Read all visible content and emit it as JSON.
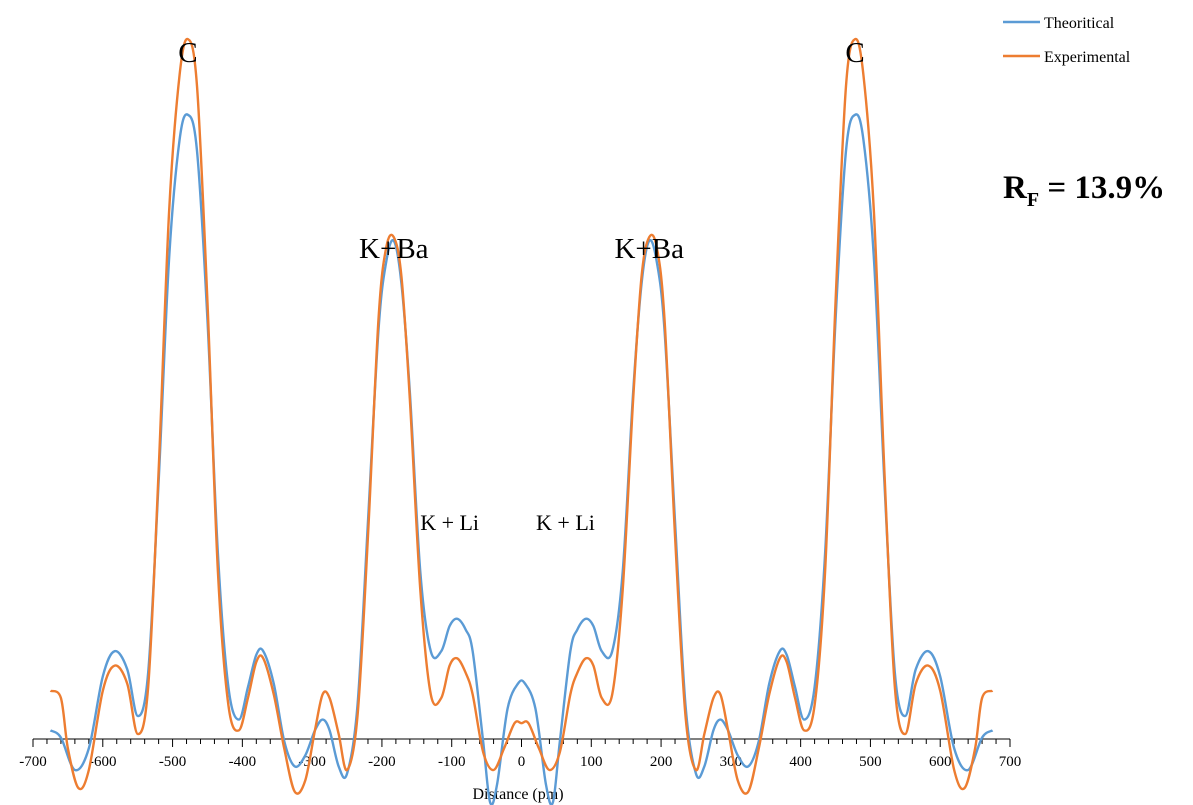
{
  "chart_data": {
    "type": "line",
    "title": "",
    "xlabel": "Distance (pm)",
    "ylabel": "",
    "xlim": [
      -700,
      700
    ],
    "x_ticks": [
      "-700",
      "-600",
      "-500",
      "-400",
      "-300",
      "-200",
      "-100",
      "0",
      "100",
      "200",
      "300",
      "400",
      "500",
      "600",
      "700"
    ],
    "grid": false,
    "legend_position": "top-right",
    "colors": {
      "Theoritical": "#5B9BD5",
      "Experimental": "#ED7D31"
    },
    "series": [
      {
        "name": "Theoritical",
        "x": [
          -675,
          -660,
          -640,
          -620,
          -600,
          -583,
          -565,
          -550,
          -535,
          -520,
          -505,
          -490,
          -478,
          -465,
          -450,
          -435,
          -420,
          -405,
          -392,
          -380,
          -370,
          -355,
          -340,
          -325,
          -310,
          -296,
          -285,
          -275,
          -262,
          -250,
          -235,
          -220,
          -205,
          -194,
          -183,
          -172,
          -160,
          -145,
          -130,
          -115,
          -103,
          -92,
          -80,
          -70,
          -55,
          -45,
          -35,
          -20,
          -5,
          5,
          20,
          35,
          45,
          55,
          70,
          80,
          92,
          103,
          115,
          130,
          145,
          160,
          172,
          183,
          194,
          205,
          220,
          235,
          250,
          262,
          275,
          285,
          296,
          310,
          325,
          340,
          355,
          370,
          380,
          392,
          405,
          420,
          435,
          450,
          465,
          478,
          490,
          505,
          520,
          535,
          550,
          565,
          583,
          600,
          620,
          640,
          660,
          675
        ],
        "y": [
          -34,
          -36,
          -45,
          -39,
          -19,
          -12,
          -17,
          -30,
          -18,
          35,
          97,
          130,
          137,
          127,
          80,
          15,
          -22,
          -31,
          -22,
          -13,
          -12,
          -21,
          -37,
          -44,
          -41,
          -34,
          -31,
          -34,
          -44,
          -46,
          -27,
          24,
          77,
          96,
          102,
          90,
          60,
          10,
          -12,
          -12,
          -5,
          -3,
          -6,
          -12,
          -37,
          -54,
          -49,
          -28,
          -21,
          -21,
          -28,
          -49,
          -54,
          -37,
          -12,
          -6,
          -3,
          -5,
          -12,
          -12,
          10,
          60,
          90,
          102,
          96,
          77,
          24,
          -27,
          -46,
          -44,
          -34,
          -31,
          -34,
          -41,
          -44,
          -37,
          -21,
          -12,
          -13,
          -22,
          -31,
          -22,
          15,
          80,
          127,
          137,
          130,
          97,
          35,
          -18,
          -30,
          -17,
          -12,
          -19,
          -39,
          -45,
          -36,
          -34
        ]
      },
      {
        "name": "Experimental",
        "x": [
          -675,
          -660,
          -650,
          -635,
          -620,
          -600,
          -583,
          -565,
          -550,
          -535,
          -520,
          -505,
          -490,
          -478,
          -465,
          -450,
          -435,
          -420,
          -405,
          -392,
          -380,
          -370,
          -355,
          -340,
          -325,
          -310,
          -296,
          -285,
          -275,
          -262,
          -250,
          -235,
          -220,
          -205,
          -194,
          -183,
          -172,
          -160,
          -145,
          -130,
          -115,
          -103,
          -92,
          -80,
          -70,
          -55,
          -40,
          -25,
          -10,
          0,
          10,
          25,
          40,
          55,
          70,
          80,
          92,
          103,
          115,
          130,
          145,
          160,
          172,
          183,
          194,
          205,
          220,
          235,
          250,
          262,
          275,
          285,
          296,
          310,
          325,
          340,
          355,
          370,
          380,
          392,
          405,
          420,
          435,
          450,
          465,
          478,
          490,
          505,
          520,
          535,
          550,
          565,
          583,
          600,
          620,
          635,
          650,
          660,
          675
        ],
        "y": [
          -23,
          -25,
          -39,
          -50,
          -45,
          -23,
          -16,
          -21,
          -35,
          -22,
          38,
          110,
          148,
          158,
          145,
          85,
          10,
          -27,
          -34,
          -25,
          -15,
          -14,
          -24,
          -39,
          -51,
          -48,
          -34,
          -24,
          -25,
          -35,
          -45,
          -30,
          20,
          80,
          100,
          103,
          92,
          58,
          5,
          -24,
          -25,
          -16,
          -14,
          -18,
          -24,
          -40,
          -45,
          -39,
          -32,
          -32,
          -32,
          -39,
          -45,
          -40,
          -24,
          -18,
          -14,
          -16,
          -25,
          -24,
          5,
          58,
          92,
          103,
          100,
          80,
          20,
          -30,
          -45,
          -35,
          -25,
          -24,
          -34,
          -48,
          -51,
          -39,
          -24,
          -14,
          -15,
          -25,
          -34,
          -27,
          10,
          85,
          145,
          158,
          148,
          110,
          38,
          -22,
          -35,
          -21,
          -16,
          -23,
          -45,
          -50,
          -39,
          -25,
          -23
        ]
      }
    ],
    "annotations": [
      {
        "text": "C",
        "x": -478
      },
      {
        "text": "K+Ba",
        "x": -183
      },
      {
        "text": "K + Li",
        "x": -103
      },
      {
        "text": "K + Li",
        "x": 63
      },
      {
        "text": "K+Ba",
        "x": 183
      },
      {
        "text": "C",
        "x": 478
      }
    ],
    "rf": {
      "main": "R",
      "sub": "F",
      "rest": " = 13.9%"
    }
  }
}
